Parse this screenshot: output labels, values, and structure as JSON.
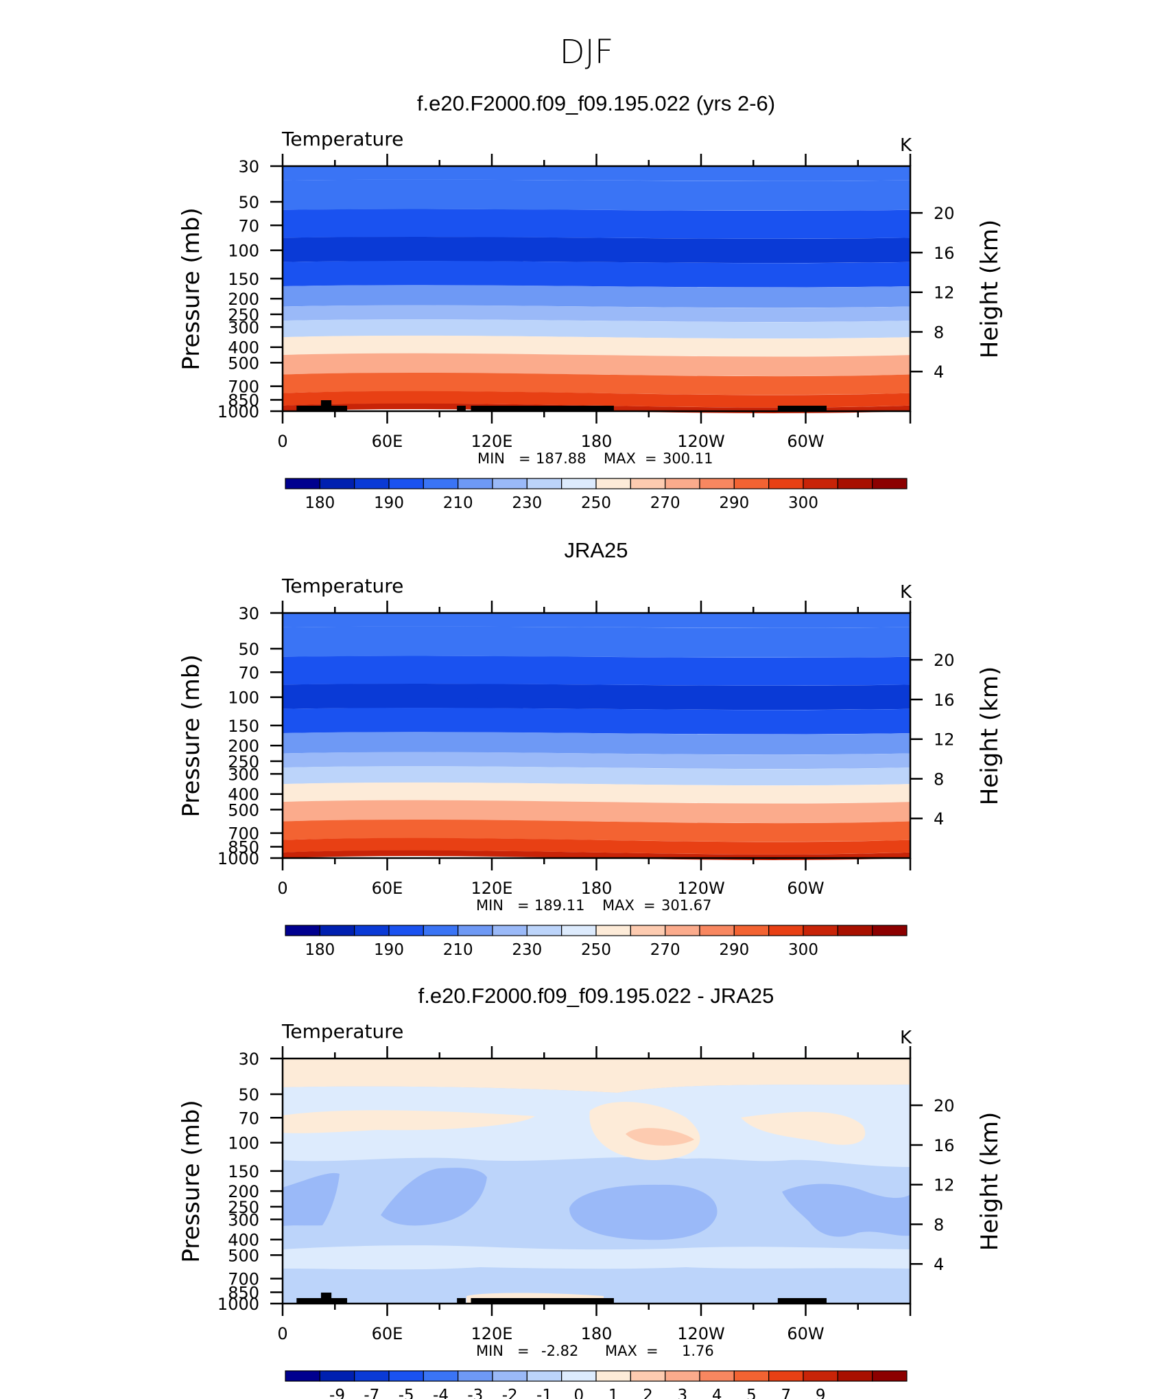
{
  "main_title": "DJF",
  "colors": {
    "temp_scale": [
      "#00008f",
      "#0020b0",
      "#0a3ad6",
      "#1a52f0",
      "#3a74f5",
      "#6e99f5",
      "#9ab9f8",
      "#bcd4fa",
      "#ddebfd",
      "#fdebd8",
      "#fdcbb0",
      "#fbab8c",
      "#f88760",
      "#f36332",
      "#e84014",
      "#c82408",
      "#a81000",
      "#8c0000"
    ],
    "diff_scale": [
      "#00008f",
      "#0020b0",
      "#0a3ad6",
      "#1a52f0",
      "#3a74f5",
      "#6e99f5",
      "#9ab9f8",
      "#bcd4fa",
      "#ddebfd",
      "#fdebd8",
      "#fdcbb0",
      "#fbab8c",
      "#f88760",
      "#f36332",
      "#e84014",
      "#c82408",
      "#a81000",
      "#8c0000"
    ],
    "topography": "#000000"
  },
  "chart_data": [
    {
      "type": "contour",
      "title": "f.e20.F2000.f09_f09.195.022 (yrs 2-6)",
      "variable": "Temperature",
      "units": "K",
      "ylabel": "Pressure (mb)",
      "ylabel_right": "Height (km)",
      "x_ticks": [
        "0",
        "60E",
        "120E",
        "180",
        "120W",
        "60W"
      ],
      "y_ticks": [
        "30",
        "50",
        "70",
        "100",
        "150",
        "200",
        "250",
        "300",
        "400",
        "500",
        "700",
        "850",
        "1000"
      ],
      "y_ticks_right": [
        "20",
        "16",
        "12",
        "8",
        "4"
      ],
      "min": "187.88",
      "max": "300.11",
      "stats_text": {
        "min_label": "MIN",
        "min_value": "187.88",
        "max_label": "MAX",
        "max_value": "300.11"
      },
      "colorbar_labels": [
        "180",
        "190",
        "210",
        "230",
        "250",
        "270",
        "290",
        "300"
      ],
      "profile_levels": [
        {
          "p": 30,
          "T": 213
        },
        {
          "p": 45,
          "T": 208
        },
        {
          "p": 70,
          "T": 200
        },
        {
          "p": 100,
          "T": 196
        },
        {
          "p": 140,
          "T": 202
        },
        {
          "p": 200,
          "T": 215
        },
        {
          "p": 250,
          "T": 223
        },
        {
          "p": 300,
          "T": 232
        },
        {
          "p": 400,
          "T": 248
        },
        {
          "p": 500,
          "T": 258
        },
        {
          "p": 700,
          "T": 273
        },
        {
          "p": 850,
          "T": 282
        },
        {
          "p": 1000,
          "T": 290
        }
      ]
    },
    {
      "type": "contour",
      "title": "JRA25",
      "variable": "Temperature",
      "units": "K",
      "ylabel": "Pressure (mb)",
      "ylabel_right": "Height (km)",
      "x_ticks": [
        "0",
        "60E",
        "120E",
        "180",
        "120W",
        "60W"
      ],
      "y_ticks": [
        "30",
        "50",
        "70",
        "100",
        "150",
        "200",
        "250",
        "300",
        "400",
        "500",
        "700",
        "850",
        "1000"
      ],
      "y_ticks_right": [
        "20",
        "16",
        "12",
        "8",
        "4"
      ],
      "min": "189.11",
      "max": "301.67",
      "stats_text": {
        "min_label": "MIN",
        "min_value": "189.11",
        "max_label": "MAX",
        "max_value": "301.67"
      },
      "colorbar_labels": [
        "180",
        "190",
        "210",
        "230",
        "250",
        "270",
        "290",
        "300"
      ],
      "profile_levels": [
        {
          "p": 30,
          "T": 213
        },
        {
          "p": 45,
          "T": 208
        },
        {
          "p": 70,
          "T": 200
        },
        {
          "p": 100,
          "T": 197
        },
        {
          "p": 140,
          "T": 202
        },
        {
          "p": 200,
          "T": 215
        },
        {
          "p": 250,
          "T": 223
        },
        {
          "p": 300,
          "T": 232
        },
        {
          "p": 400,
          "T": 248
        },
        {
          "p": 500,
          "T": 258
        },
        {
          "p": 700,
          "T": 273
        },
        {
          "p": 850,
          "T": 283
        },
        {
          "p": 1000,
          "T": 292
        }
      ]
    },
    {
      "type": "contour",
      "title": "f.e20.F2000.f09_f09.195.022 - JRA25",
      "variable": "Temperature",
      "units": "K",
      "ylabel": "Pressure (mb)",
      "ylabel_right": "Height (km)",
      "x_ticks": [
        "0",
        "60E",
        "120E",
        "180",
        "120W",
        "60W"
      ],
      "y_ticks": [
        "30",
        "50",
        "70",
        "100",
        "150",
        "200",
        "250",
        "300",
        "400",
        "500",
        "700",
        "850",
        "1000"
      ],
      "y_ticks_right": [
        "20",
        "16",
        "12",
        "8",
        "4"
      ],
      "min": "-2.82",
      "max": "1.76",
      "stats_text": {
        "min_label": "MIN",
        "min_value": "-2.82",
        "max_label": "MAX",
        "max_value": "1.76"
      },
      "colorbar_labels": [
        "-9",
        "-7",
        "-5",
        "-4",
        "-3",
        "-2",
        "-1",
        "0",
        "1",
        "2",
        "3",
        "4",
        "5",
        "7",
        "9"
      ]
    }
  ]
}
